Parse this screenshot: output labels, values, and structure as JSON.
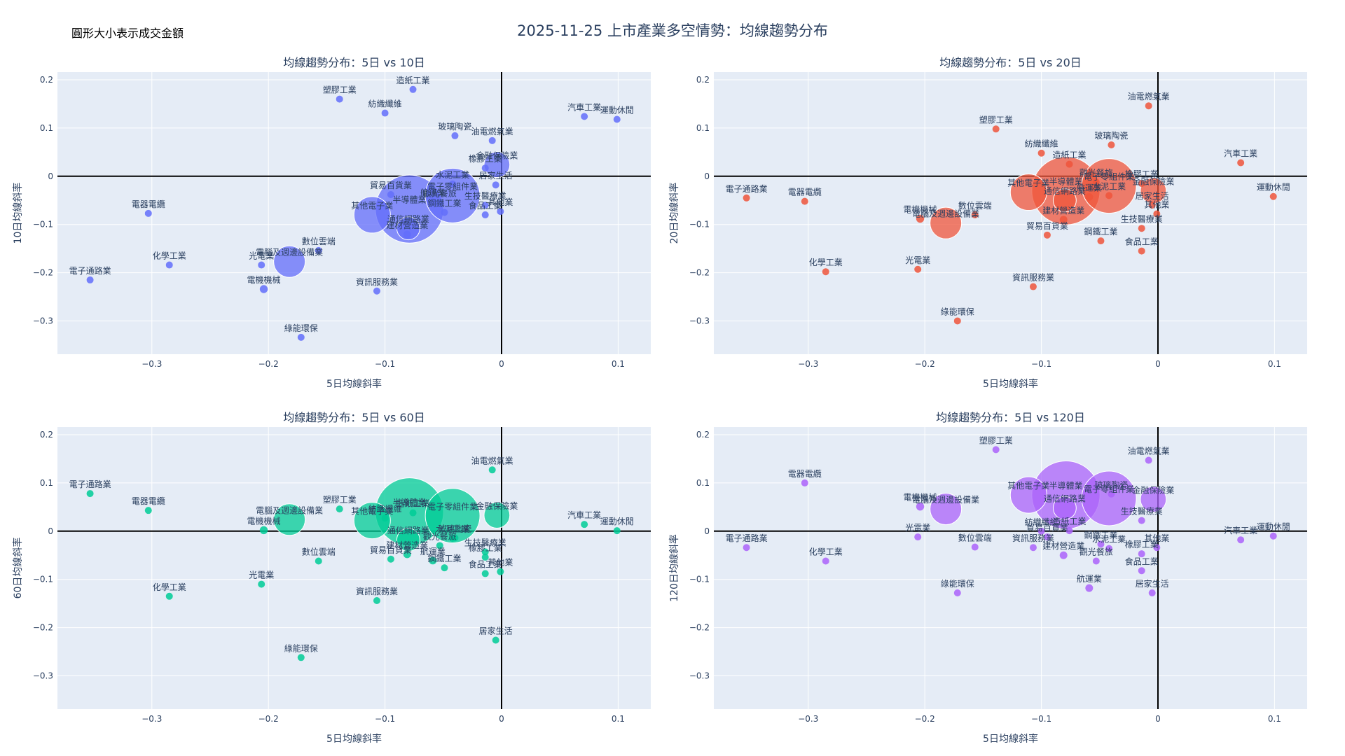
{
  "title": "2025-11-25 上市產業多空情勢：均線趨勢分布",
  "size_note": "圓形大小表示成交金額",
  "colors": {
    "ma10": "#636efa",
    "ma20": "#ef553b",
    "ma60": "#00cc96",
    "ma120": "#ab63fa",
    "plot_bg": "#e5ecf6",
    "grid": "#ffffff",
    "zero_line": "#000000",
    "text": "#2a3f5f"
  },
  "chart_data": [
    {
      "type": "scatter",
      "title": "均線趨勢分布：5日 vs 10日",
      "xlabel": "5日均線斜率",
      "ylabel": "10日均線斜率",
      "xlim": [
        -0.381,
        0.128
      ],
      "ylim": [
        -0.369,
        0.216
      ],
      "xticks": [
        -0.3,
        -0.2,
        -0.1,
        0,
        0.1
      ],
      "yticks": [
        -0.3,
        -0.2,
        -0.1,
        0,
        0.1,
        0.2
      ],
      "color_key": "ma10",
      "points": [
        {
          "name": "電子通路業",
          "x": -0.353,
          "y": -0.215,
          "size": 1
        },
        {
          "name": "電器電纜",
          "x": -0.303,
          "y": -0.077,
          "size": 1
        },
        {
          "name": "化學工業",
          "x": -0.285,
          "y": -0.184,
          "size": 1
        },
        {
          "name": "光電業",
          "x": -0.206,
          "y": -0.184,
          "size": 1
        },
        {
          "name": "電機機械",
          "x": -0.204,
          "y": -0.234,
          "size": 1.3
        },
        {
          "name": "電腦及週邊設備業",
          "x": -0.182,
          "y": -0.177,
          "size": 3
        },
        {
          "name": "數位雲端",
          "x": -0.157,
          "y": -0.154,
          "size": 1
        },
        {
          "name": "綠能環保",
          "x": -0.172,
          "y": -0.334,
          "size": 1
        },
        {
          "name": "塑膠工業",
          "x": -0.139,
          "y": 0.16,
          "size": 1
        },
        {
          "name": "其他電子業",
          "x": -0.111,
          "y": -0.08,
          "size": 4
        },
        {
          "name": "紡織纖維",
          "x": -0.1,
          "y": 0.131,
          "size": 1
        },
        {
          "name": "資訊服務業",
          "x": -0.107,
          "y": -0.238,
          "size": 1
        },
        {
          "name": "貿易百貨業",
          "x": -0.095,
          "y": -0.038,
          "size": 1
        },
        {
          "name": "通信網路業",
          "x": -0.08,
          "y": -0.108,
          "size": 1.6
        },
        {
          "name": "建材營造業",
          "x": -0.081,
          "y": -0.121,
          "size": 1.2
        },
        {
          "name": "造紙工業",
          "x": -0.076,
          "y": 0.18,
          "size": 1
        },
        {
          "name": "半導體業",
          "x": -0.079,
          "y": -0.068,
          "size": 14
        },
        {
          "name": "航運業",
          "x": -0.059,
          "y": -0.053,
          "size": 1.2
        },
        {
          "name": "觀光餐旅",
          "x": -0.053,
          "y": -0.055,
          "size": 1
        },
        {
          "name": "鋼鐵工業",
          "x": -0.049,
          "y": -0.075,
          "size": 1
        },
        {
          "name": "水泥工業",
          "x": -0.042,
          "y": -0.016,
          "size": 1
        },
        {
          "name": "玻璃陶瓷",
          "x": -0.04,
          "y": 0.084,
          "size": 1
        },
        {
          "name": "電子零組件業",
          "x": -0.042,
          "y": -0.04,
          "size": 9
        },
        {
          "name": "生技醫療業",
          "x": -0.014,
          "y": -0.06,
          "size": 1
        },
        {
          "name": "橡膠工業",
          "x": -0.014,
          "y": 0.017,
          "size": 1
        },
        {
          "name": "食品工業",
          "x": -0.014,
          "y": -0.08,
          "size": 1
        },
        {
          "name": "油電燃氣業",
          "x": -0.008,
          "y": 0.074,
          "size": 1
        },
        {
          "name": "金融保險業",
          "x": -0.004,
          "y": 0.024,
          "size": 2
        },
        {
          "name": "居家生活",
          "x": -0.005,
          "y": -0.018,
          "size": 1
        },
        {
          "name": "其他業",
          "x": -0.001,
          "y": -0.073,
          "size": 1
        },
        {
          "name": "汽車工業",
          "x": 0.071,
          "y": 0.124,
          "size": 1
        },
        {
          "name": "運動休閒",
          "x": 0.099,
          "y": 0.118,
          "size": 1
        }
      ]
    },
    {
      "type": "scatter",
      "title": "均線趨勢分布：5日 vs 20日",
      "xlabel": "5日均線斜率",
      "ylabel": "20日均線斜率",
      "xlim": [
        -0.381,
        0.128
      ],
      "ylim": [
        -0.369,
        0.216
      ],
      "xticks": [
        -0.3,
        -0.2,
        -0.1,
        0,
        0.1
      ],
      "yticks": [
        -0.3,
        -0.2,
        -0.1,
        0,
        0.1,
        0.2
      ],
      "color_key": "ma20",
      "points": [
        {
          "name": "電子通路業",
          "x": -0.353,
          "y": -0.045,
          "size": 1
        },
        {
          "name": "電器電纜",
          "x": -0.303,
          "y": -0.052,
          "size": 1
        },
        {
          "name": "化學工業",
          "x": -0.285,
          "y": -0.198,
          "size": 1
        },
        {
          "name": "光電業",
          "x": -0.206,
          "y": -0.193,
          "size": 1
        },
        {
          "name": "電機機械",
          "x": -0.204,
          "y": -0.088,
          "size": 1.3
        },
        {
          "name": "電腦及週邊設備業",
          "x": -0.182,
          "y": -0.097,
          "size": 3
        },
        {
          "name": "數位雲端",
          "x": -0.157,
          "y": -0.08,
          "size": 1
        },
        {
          "name": "綠能環保",
          "x": -0.172,
          "y": -0.3,
          "size": 1
        },
        {
          "name": "塑膠工業",
          "x": -0.139,
          "y": 0.098,
          "size": 1
        },
        {
          "name": "其他電子業",
          "x": -0.111,
          "y": -0.033,
          "size": 4
        },
        {
          "name": "紡織纖維",
          "x": -0.1,
          "y": 0.048,
          "size": 1
        },
        {
          "name": "資訊服務業",
          "x": -0.107,
          "y": -0.229,
          "size": 1
        },
        {
          "name": "貿易百貨業",
          "x": -0.095,
          "y": -0.122,
          "size": 1
        },
        {
          "name": "通信網路業",
          "x": -0.08,
          "y": -0.05,
          "size": 1.6
        },
        {
          "name": "建材營造業",
          "x": -0.081,
          "y": -0.09,
          "size": 1.2
        },
        {
          "name": "造紙工業",
          "x": -0.076,
          "y": 0.025,
          "size": 1
        },
        {
          "name": "半導體業",
          "x": -0.079,
          "y": -0.03,
          "size": 14
        },
        {
          "name": "航運業",
          "x": -0.059,
          "y": -0.043,
          "size": 1.2
        },
        {
          "name": "觀光餐旅",
          "x": -0.053,
          "y": -0.012,
          "size": 1
        },
        {
          "name": "鋼鐵工業",
          "x": -0.049,
          "y": -0.134,
          "size": 1
        },
        {
          "name": "水泥工業",
          "x": -0.042,
          "y": -0.04,
          "size": 1
        },
        {
          "name": "玻璃陶瓷",
          "x": -0.04,
          "y": 0.065,
          "size": 1
        },
        {
          "name": "電子零組件業",
          "x": -0.042,
          "y": -0.02,
          "size": 9
        },
        {
          "name": "生技醫療業",
          "x": -0.014,
          "y": -0.108,
          "size": 1
        },
        {
          "name": "橡膠工業",
          "x": -0.014,
          "y": -0.015,
          "size": 1
        },
        {
          "name": "食品工業",
          "x": -0.014,
          "y": -0.155,
          "size": 1
        },
        {
          "name": "油電燃氣業",
          "x": -0.008,
          "y": 0.146,
          "size": 1
        },
        {
          "name": "金融保險業",
          "x": -0.004,
          "y": -0.03,
          "size": 2
        },
        {
          "name": "居家生活",
          "x": -0.005,
          "y": -0.06,
          "size": 1
        },
        {
          "name": "其他業",
          "x": -0.001,
          "y": -0.078,
          "size": 1
        },
        {
          "name": "汽車工業",
          "x": 0.071,
          "y": 0.028,
          "size": 1
        },
        {
          "name": "運動休閒",
          "x": 0.099,
          "y": -0.042,
          "size": 1
        }
      ]
    },
    {
      "type": "scatter",
      "title": "均線趨勢分布：5日 vs 60日",
      "xlabel": "5日均線斜率",
      "ylabel": "60日均線斜率",
      "xlim": [
        -0.381,
        0.128
      ],
      "ylim": [
        -0.369,
        0.216
      ],
      "xticks": [
        -0.3,
        -0.2,
        -0.1,
        0,
        0.1
      ],
      "yticks": [
        -0.3,
        -0.2,
        -0.1,
        0,
        0.1,
        0.2
      ],
      "color_key": "ma60",
      "points": [
        {
          "name": "電子通路業",
          "x": -0.353,
          "y": 0.078,
          "size": 1
        },
        {
          "name": "電器電纜",
          "x": -0.303,
          "y": 0.043,
          "size": 1
        },
        {
          "name": "化學工業",
          "x": -0.285,
          "y": -0.135,
          "size": 1
        },
        {
          "name": "光電業",
          "x": -0.206,
          "y": -0.11,
          "size": 1
        },
        {
          "name": "電機機械",
          "x": -0.204,
          "y": 0.002,
          "size": 1.3
        },
        {
          "name": "電腦及週邊設備業",
          "x": -0.182,
          "y": 0.024,
          "size": 3
        },
        {
          "name": "數位雲端",
          "x": -0.157,
          "y": -0.062,
          "size": 1
        },
        {
          "name": "綠能環保",
          "x": -0.172,
          "y": -0.262,
          "size": 1
        },
        {
          "name": "塑膠工業",
          "x": -0.139,
          "y": 0.046,
          "size": 1
        },
        {
          "name": "其他電子業",
          "x": -0.111,
          "y": 0.022,
          "size": 4
        },
        {
          "name": "紡織纖維",
          "x": -0.1,
          "y": 0.027,
          "size": 1
        },
        {
          "name": "資訊服務業",
          "x": -0.107,
          "y": -0.144,
          "size": 1
        },
        {
          "name": "貿易百貨業",
          "x": -0.095,
          "y": -0.058,
          "size": 1
        },
        {
          "name": "通信網路業",
          "x": -0.08,
          "y": -0.018,
          "size": 1.6
        },
        {
          "name": "建材營造業",
          "x": -0.081,
          "y": -0.048,
          "size": 1.2
        },
        {
          "name": "造紙工業",
          "x": -0.076,
          "y": 0.038,
          "size": 1
        },
        {
          "name": "半導體業",
          "x": -0.079,
          "y": 0.04,
          "size": 14
        },
        {
          "name": "航運業",
          "x": -0.059,
          "y": -0.061,
          "size": 1.2
        },
        {
          "name": "觀光餐旅",
          "x": -0.053,
          "y": -0.03,
          "size": 1
        },
        {
          "name": "鋼鐵工業",
          "x": -0.049,
          "y": -0.076,
          "size": 1
        },
        {
          "name": "水泥工業",
          "x": -0.042,
          "y": -0.015,
          "size": 1
        },
        {
          "name": "玻璃陶瓷",
          "x": -0.04,
          "y": -0.014,
          "size": 1
        },
        {
          "name": "電子零組件業",
          "x": -0.042,
          "y": 0.032,
          "size": 9
        },
        {
          "name": "生技醫療業",
          "x": -0.014,
          "y": -0.043,
          "size": 1
        },
        {
          "name": "橡膠工業",
          "x": -0.014,
          "y": -0.054,
          "size": 1
        },
        {
          "name": "食品工業",
          "x": -0.014,
          "y": -0.088,
          "size": 1
        },
        {
          "name": "油電燃氣業",
          "x": -0.008,
          "y": 0.127,
          "size": 1
        },
        {
          "name": "金融保險業",
          "x": -0.004,
          "y": 0.033,
          "size": 2
        },
        {
          "name": "居家生活",
          "x": -0.005,
          "y": -0.226,
          "size": 1
        },
        {
          "name": "其他業",
          "x": -0.001,
          "y": -0.084,
          "size": 1
        },
        {
          "name": "汽車工業",
          "x": 0.071,
          "y": 0.014,
          "size": 1
        },
        {
          "name": "運動休閒",
          "x": 0.099,
          "y": 0.001,
          "size": 1
        }
      ]
    },
    {
      "type": "scatter",
      "title": "均線趨勢分布：5日 vs 120日",
      "xlabel": "5日均線斜率",
      "ylabel": "120日均線斜率",
      "xlim": [
        -0.381,
        0.128
      ],
      "ylim": [
        -0.369,
        0.216
      ],
      "xticks": [
        -0.3,
        -0.2,
        -0.1,
        0,
        0.1
      ],
      "yticks": [
        -0.3,
        -0.2,
        -0.1,
        0,
        0.1,
        0.2
      ],
      "color_key": "ma120",
      "points": [
        {
          "name": "電子通路業",
          "x": -0.353,
          "y": -0.034,
          "size": 1
        },
        {
          "name": "電器電纜",
          "x": -0.303,
          "y": 0.1,
          "size": 1
        },
        {
          "name": "化學工業",
          "x": -0.285,
          "y": -0.062,
          "size": 1
        },
        {
          "name": "光電業",
          "x": -0.206,
          "y": -0.012,
          "size": 1
        },
        {
          "name": "電機機械",
          "x": -0.204,
          "y": 0.051,
          "size": 1.3
        },
        {
          "name": "電腦及週邊設備業",
          "x": -0.182,
          "y": 0.046,
          "size": 3
        },
        {
          "name": "數位雲端",
          "x": -0.157,
          "y": -0.033,
          "size": 1
        },
        {
          "name": "綠能環保",
          "x": -0.172,
          "y": -0.128,
          "size": 1
        },
        {
          "name": "塑膠工業",
          "x": -0.139,
          "y": 0.169,
          "size": 1
        },
        {
          "name": "其他電子業",
          "x": -0.111,
          "y": 0.075,
          "size": 4
        },
        {
          "name": "紡織纖維",
          "x": -0.1,
          "y": 0.0,
          "size": 1
        },
        {
          "name": "資訊服務業",
          "x": -0.107,
          "y": -0.034,
          "size": 1
        },
        {
          "name": "貿易百貨業",
          "x": -0.095,
          "y": -0.012,
          "size": 1
        },
        {
          "name": "通信網路業",
          "x": -0.08,
          "y": 0.048,
          "size": 1.6
        },
        {
          "name": "建材營造業",
          "x": -0.081,
          "y": -0.05,
          "size": 1.2
        },
        {
          "name": "造紙工業",
          "x": -0.076,
          "y": 0.001,
          "size": 1
        },
        {
          "name": "半導體業",
          "x": -0.079,
          "y": 0.075,
          "size": 14
        },
        {
          "name": "航運業",
          "x": -0.059,
          "y": -0.118,
          "size": 1.2
        },
        {
          "name": "觀光餐旅",
          "x": -0.053,
          "y": -0.062,
          "size": 1
        },
        {
          "name": "鋼鐵工業",
          "x": -0.049,
          "y": -0.027,
          "size": 1
        },
        {
          "name": "水泥工業",
          "x": -0.042,
          "y": -0.036,
          "size": 1
        },
        {
          "name": "玻璃陶瓷",
          "x": -0.04,
          "y": 0.077,
          "size": 1
        },
        {
          "name": "電子零組件業",
          "x": -0.042,
          "y": 0.068,
          "size": 9
        },
        {
          "name": "生技醫療業",
          "x": -0.014,
          "y": 0.022,
          "size": 1
        },
        {
          "name": "橡膠工業",
          "x": -0.014,
          "y": -0.047,
          "size": 1
        },
        {
          "name": "食品工業",
          "x": -0.014,
          "y": -0.082,
          "size": 1
        },
        {
          "name": "油電燃氣業",
          "x": -0.008,
          "y": 0.147,
          "size": 1
        },
        {
          "name": "金融保險業",
          "x": -0.004,
          "y": 0.066,
          "size": 2
        },
        {
          "name": "居家生活",
          "x": -0.005,
          "y": -0.128,
          "size": 1
        },
        {
          "name": "其他業",
          "x": -0.001,
          "y": -0.034,
          "size": 1
        },
        {
          "name": "汽車工業",
          "x": 0.071,
          "y": -0.018,
          "size": 1
        },
        {
          "name": "運動休閒",
          "x": 0.099,
          "y": -0.01,
          "size": 1
        }
      ]
    }
  ]
}
